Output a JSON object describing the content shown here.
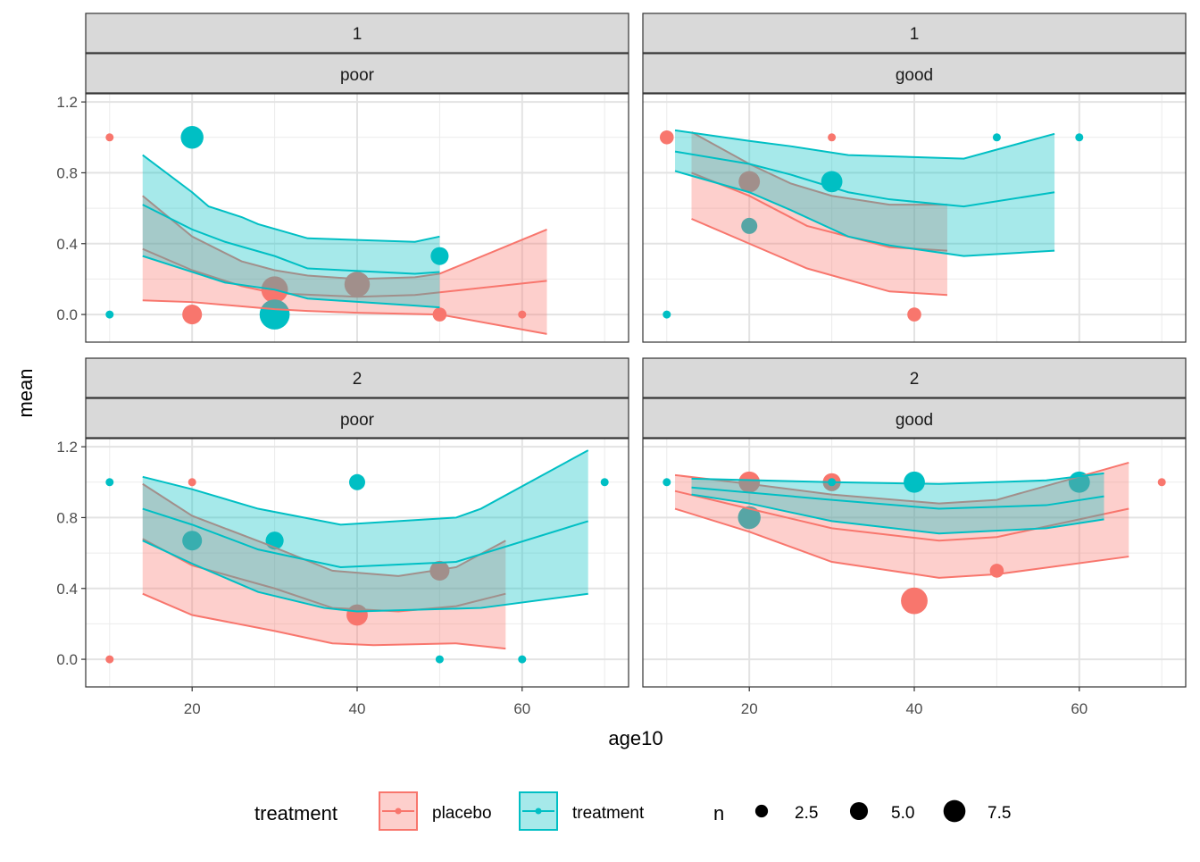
{
  "chart_data": {
    "type": "scatter",
    "xlabel": "age10",
    "ylabel": "mean",
    "xlim": [
      7.1,
      72.9
    ],
    "ylim": [
      -0.156,
      1.246
    ],
    "x_ticks": [
      {
        "value": 20,
        "label": "20"
      },
      {
        "value": 40,
        "label": "40"
      },
      {
        "value": 60,
        "label": "60"
      }
    ],
    "y_ticks": [
      {
        "value": 0,
        "label": "0.0"
      },
      {
        "value": 0.4,
        "label": "0.4"
      },
      {
        "value": 0.8,
        "label": "0.8"
      },
      {
        "value": 1.2,
        "label": "1.2"
      }
    ],
    "grid": true,
    "colors": {
      "placebo": "#F8766D",
      "treatment": "#00BFC4"
    },
    "facets": [
      {
        "row_strip": "1",
        "col_strip": "poor",
        "points": {
          "placebo": [
            [
              10,
              1,
              1
            ],
            [
              20,
              0,
              6
            ],
            [
              30,
              0.14,
              11
            ],
            [
              40,
              0.17,
              10
            ],
            [
              50,
              0,
              3
            ],
            [
              60,
              0,
              1
            ]
          ],
          "treatment": [
            [
              10,
              0,
              1
            ],
            [
              20,
              1,
              8
            ],
            [
              30,
              0,
              14
            ],
            [
              50,
              0.33,
              5
            ]
          ]
        },
        "ribbons": {
          "placebo": {
            "upper": [
              [
                14,
                0.67
              ],
              [
                20,
                0.44
              ],
              [
                26,
                0.3
              ],
              [
                30,
                0.25
              ],
              [
                34,
                0.22
              ],
              [
                40,
                0.2
              ],
              [
                47,
                0.21
              ],
              [
                50,
                0.23
              ],
              [
                63,
                0.48
              ]
            ],
            "mean": [
              [
                14,
                0.37
              ],
              [
                20,
                0.25
              ],
              [
                26,
                0.16
              ],
              [
                30,
                0.12
              ],
              [
                40,
                0.1
              ],
              [
                47,
                0.11
              ],
              [
                63,
                0.19
              ]
            ],
            "lower": [
              [
                14,
                0.08
              ],
              [
                20,
                0.07
              ],
              [
                30,
                0.03
              ],
              [
                34,
                0.02
              ],
              [
                40,
                0.01
              ],
              [
                50,
                0.0
              ],
              [
                63,
                -0.11
              ]
            ]
          },
          "treatment": {
            "upper": [
              [
                14,
                0.9
              ],
              [
                20,
                0.69
              ],
              [
                22,
                0.61
              ],
              [
                26,
                0.55
              ],
              [
                28,
                0.51
              ],
              [
                34,
                0.43
              ],
              [
                47,
                0.41
              ],
              [
                50,
                0.44
              ]
            ],
            "mean": [
              [
                14,
                0.62
              ],
              [
                20,
                0.48
              ],
              [
                24,
                0.41
              ],
              [
                30,
                0.33
              ],
              [
                34,
                0.26
              ],
              [
                47,
                0.23
              ],
              [
                50,
                0.24
              ]
            ],
            "lower": [
              [
                14,
                0.33
              ],
              [
                20,
                0.24
              ],
              [
                24,
                0.18
              ],
              [
                30,
                0.14
              ],
              [
                34,
                0.09
              ],
              [
                47,
                0.05
              ],
              [
                50,
                0.04
              ]
            ]
          }
        }
      },
      {
        "row_strip": "1",
        "col_strip": "good",
        "points": {
          "placebo": [
            [
              10,
              1,
              3
            ],
            [
              20,
              0.75,
              7
            ],
            [
              30,
              1,
              1
            ],
            [
              40,
              0,
              3
            ]
          ],
          "treatment": [
            [
              10,
              0,
              1
            ],
            [
              20,
              0.5,
              4
            ],
            [
              30,
              0.75,
              7
            ],
            [
              50,
              1,
              1
            ],
            [
              60,
              1,
              1
            ]
          ]
        },
        "ribbons": {
          "placebo": {
            "upper": [
              [
                13,
                1.03
              ],
              [
                20,
                0.85
              ],
              [
                25,
                0.74
              ],
              [
                30,
                0.67
              ],
              [
                37,
                0.62
              ],
              [
                44,
                0.62
              ]
            ],
            "mean": [
              [
                13,
                0.8
              ],
              [
                20,
                0.67
              ],
              [
                27,
                0.5
              ],
              [
                37,
                0.38
              ],
              [
                44,
                0.36
              ]
            ],
            "lower": [
              [
                13,
                0.54
              ],
              [
                20,
                0.4
              ],
              [
                27,
                0.26
              ],
              [
                37,
                0.13
              ],
              [
                44,
                0.11
              ]
            ]
          },
          "treatment": {
            "upper": [
              [
                11,
                1.04
              ],
              [
                20,
                0.98
              ],
              [
                25,
                0.95
              ],
              [
                32,
                0.9
              ],
              [
                46,
                0.88
              ],
              [
                57,
                1.02
              ]
            ],
            "mean": [
              [
                11,
                0.92
              ],
              [
                20,
                0.85
              ],
              [
                25,
                0.79
              ],
              [
                32,
                0.69
              ],
              [
                37,
                0.65
              ],
              [
                46,
                0.61
              ],
              [
                57,
                0.69
              ]
            ],
            "lower": [
              [
                11,
                0.81
              ],
              [
                20,
                0.69
              ],
              [
                25,
                0.59
              ],
              [
                32,
                0.44
              ],
              [
                37,
                0.39
              ],
              [
                46,
                0.33
              ],
              [
                57,
                0.36
              ]
            ]
          }
        }
      },
      {
        "row_strip": "2",
        "col_strip": "poor",
        "points": {
          "placebo": [
            [
              10,
              0,
              1
            ],
            [
              20,
              1,
              1
            ],
            [
              40,
              0.25,
              7
            ],
            [
              50,
              0.5,
              6
            ]
          ],
          "treatment": [
            [
              10,
              1,
              1
            ],
            [
              20,
              0.67,
              6
            ],
            [
              30,
              0.67,
              5
            ],
            [
              40,
              1,
              4
            ],
            [
              50,
              0,
              1
            ],
            [
              60,
              0,
              1
            ],
            [
              70,
              1,
              1
            ]
          ]
        },
        "ribbons": {
          "placebo": {
            "upper": [
              [
                14,
                0.99
              ],
              [
                20,
                0.81
              ],
              [
                29,
                0.65
              ],
              [
                37,
                0.5
              ],
              [
                45,
                0.47
              ],
              [
                52,
                0.52
              ],
              [
                58,
                0.67
              ]
            ],
            "mean": [
              [
                14,
                0.68
              ],
              [
                20,
                0.53
              ],
              [
                30,
                0.4
              ],
              [
                37,
                0.29
              ],
              [
                45,
                0.27
              ],
              [
                52,
                0.3
              ],
              [
                58,
                0.37
              ]
            ],
            "lower": [
              [
                14,
                0.37
              ],
              [
                20,
                0.25
              ],
              [
                30,
                0.16
              ],
              [
                37,
                0.09
              ],
              [
                42,
                0.08
              ],
              [
                52,
                0.09
              ],
              [
                58,
                0.06
              ]
            ]
          },
          "treatment": {
            "upper": [
              [
                14,
                1.03
              ],
              [
                20,
                0.96
              ],
              [
                28,
                0.85
              ],
              [
                38,
                0.76
              ],
              [
                52,
                0.8
              ],
              [
                55,
                0.85
              ],
              [
                68,
                1.18
              ]
            ],
            "mean": [
              [
                14,
                0.85
              ],
              [
                20,
                0.76
              ],
              [
                28,
                0.62
              ],
              [
                38,
                0.52
              ],
              [
                52,
                0.55
              ],
              [
                68,
                0.78
              ]
            ],
            "lower": [
              [
                14,
                0.67
              ],
              [
                20,
                0.54
              ],
              [
                28,
                0.38
              ],
              [
                36,
                0.29
              ],
              [
                40,
                0.27
              ],
              [
                55,
                0.29
              ],
              [
                68,
                0.37
              ]
            ]
          }
        }
      },
      {
        "row_strip": "2",
        "col_strip": "good",
        "points": {
          "placebo": [
            [
              20,
              1,
              7
            ],
            [
              30,
              1,
              5
            ],
            [
              40,
              0.33,
              11
            ],
            [
              50,
              0.5,
              3
            ],
            [
              70,
              1,
              1
            ]
          ],
          "treatment": [
            [
              10,
              1,
              1
            ],
            [
              20,
              0.8,
              8
            ],
            [
              30,
              1,
              1
            ],
            [
              40,
              1,
              7
            ],
            [
              60,
              1,
              7
            ]
          ]
        },
        "ribbons": {
          "placebo": {
            "upper": [
              [
                11,
                1.04
              ],
              [
                20,
                0.99
              ],
              [
                30,
                0.93
              ],
              [
                43,
                0.88
              ],
              [
                50,
                0.9
              ],
              [
                66,
                1.11
              ]
            ],
            "mean": [
              [
                11,
                0.95
              ],
              [
                20,
                0.85
              ],
              [
                30,
                0.74
              ],
              [
                43,
                0.67
              ],
              [
                50,
                0.69
              ],
              [
                66,
                0.85
              ]
            ],
            "lower": [
              [
                11,
                0.85
              ],
              [
                20,
                0.72
              ],
              [
                30,
                0.55
              ],
              [
                43,
                0.46
              ],
              [
                50,
                0.48
              ],
              [
                66,
                0.58
              ]
            ]
          },
          "treatment": {
            "upper": [
              [
                13,
                1.02
              ],
              [
                30,
                1.0
              ],
              [
                43,
                0.99
              ],
              [
                56,
                1.01
              ],
              [
                63,
                1.05
              ]
            ],
            "mean": [
              [
                13,
                0.97
              ],
              [
                30,
                0.9
              ],
              [
                43,
                0.85
              ],
              [
                56,
                0.87
              ],
              [
                63,
                0.92
              ]
            ],
            "lower": [
              [
                13,
                0.93
              ],
              [
                20,
                0.88
              ],
              [
                30,
                0.78
              ],
              [
                43,
                0.71
              ],
              [
                56,
                0.74
              ],
              [
                63,
                0.79
              ]
            ]
          }
        }
      }
    ],
    "legend": {
      "placement": "bottom",
      "color_title": "treatment",
      "color_entries": [
        "placebo",
        "treatment"
      ],
      "size_title": "n",
      "size_entries": [
        {
          "value": 2.5,
          "label": "2.5"
        },
        {
          "value": 5.0,
          "label": "5.0"
        },
        {
          "value": 7.5,
          "label": "7.5"
        }
      ]
    }
  }
}
